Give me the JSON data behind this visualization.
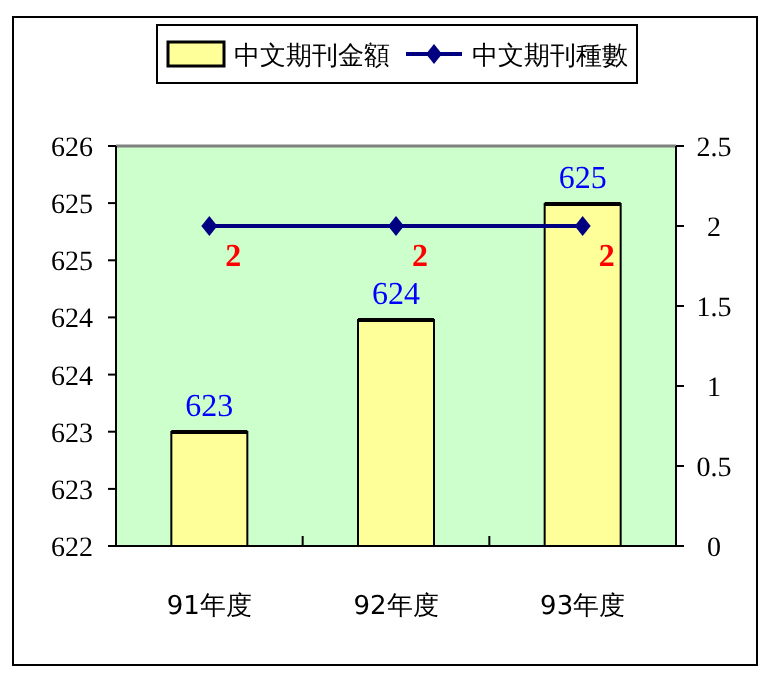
{
  "chart_data": {
    "type": "bar",
    "categories": [
      "91年度",
      "92年度",
      "93年度"
    ],
    "series": [
      {
        "name": "中文期刊金額",
        "axis": "y",
        "color": "#ffff99",
        "values": [
          623.14,
          624.26,
          625.42
        ],
        "value_labels": [
          "623",
          "624",
          "625"
        ]
      },
      {
        "name": "中文期刊種數",
        "type": "line",
        "axis": "y2",
        "color": "#000080",
        "values": [
          2,
          2,
          2
        ],
        "value_labels": [
          "2",
          "2",
          "2"
        ],
        "marker": "diamond"
      }
    ],
    "ylim": [
      622,
      626
    ],
    "yticks": [
      622,
      {
        "value": 622.571,
        "label": "623"
      },
      {
        "value": 623.143,
        "label": "623"
      },
      {
        "value": 623.714,
        "label": "624"
      },
      {
        "value": 624.286,
        "label": "624"
      },
      {
        "value": 624.857,
        "label": "625"
      },
      {
        "value": 625.429,
        "label": "625"
      },
      626
    ],
    "y2lim": [
      0,
      2.5
    ],
    "y2ticks": [
      0,
      0.5,
      1,
      1.5,
      2,
      2.5
    ],
    "legend": "top",
    "grid": false
  }
}
